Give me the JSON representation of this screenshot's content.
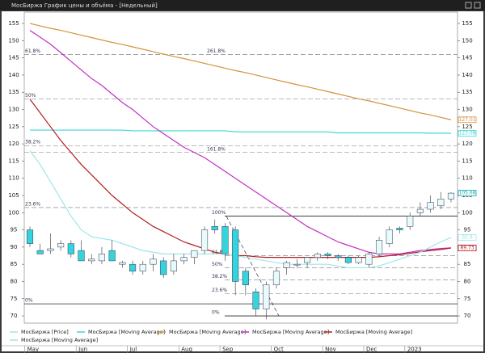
{
  "window_title": "МосБиржа График цены и объёма - [Недельный]",
  "chart_data": {
    "type": "candlestick",
    "categories": [
      "May",
      null,
      null,
      null,
      null,
      "Jun",
      null,
      null,
      null,
      null,
      "Jul",
      null,
      null,
      null,
      null,
      "Aug",
      null,
      null,
      null,
      "Sep",
      null,
      null,
      null,
      null,
      "Oct",
      null,
      null,
      null,
      null,
      "Nov",
      null,
      null,
      null,
      "Dec",
      null,
      null,
      null,
      "2023",
      null,
      null,
      null,
      null
    ],
    "price": {
      "name": "МосБиржа [Price]",
      "color": "#9fe6e6",
      "up_color": "#e8fbfb",
      "down_color": "#33d4dc",
      "last": 105.68,
      "open": [
        95,
        89,
        89,
        90,
        91,
        89,
        86,
        86,
        89,
        85,
        85,
        83,
        85,
        86,
        83,
        86,
        87,
        89,
        96,
        96,
        95,
        83,
        77,
        72,
        79,
        84,
        85,
        85.5,
        87,
        88,
        87.5,
        87,
        85.5,
        85,
        88,
        91,
        95.5,
        96,
        100,
        101,
        102,
        104
      ],
      "high": [
        96,
        91,
        94,
        92,
        92,
        92,
        88,
        90,
        92,
        86,
        86,
        86,
        88,
        87,
        88,
        88,
        89,
        96,
        98,
        97,
        96,
        84,
        78,
        80,
        84,
        86,
        86.5,
        87,
        88.5,
        88.5,
        88,
        87.5,
        87.5,
        88.5,
        93,
        96,
        96,
        100,
        103,
        105,
        106,
        106
      ],
      "low": [
        90,
        88,
        88,
        89,
        87,
        86,
        85,
        85,
        86,
        84,
        82,
        82,
        83,
        81,
        82,
        85,
        85,
        88,
        94,
        86,
        76,
        76,
        70,
        69,
        78,
        82,
        84,
        84,
        86,
        86.5,
        86,
        85,
        85,
        84,
        87,
        90,
        94,
        95,
        99,
        100,
        101,
        103
      ],
      "close": [
        91,
        88,
        89.5,
        91,
        88,
        86,
        86.5,
        88,
        86,
        85.5,
        83,
        85,
        86.5,
        82,
        86,
        87,
        89,
        95,
        95,
        88,
        80,
        79,
        72,
        79,
        83,
        85.5,
        85,
        87,
        88,
        87.5,
        87,
        85.5,
        87,
        88,
        92,
        95,
        95,
        99,
        101,
        103,
        104,
        105.68
      ]
    },
    "series": [
      {
        "name": "МосБиржа [Moving Average]",
        "color": "#3fd6d6",
        "last": 123.08,
        "values": [
          124,
          124,
          124,
          124,
          124,
          124,
          124,
          124,
          124,
          124,
          123.8,
          123.8,
          123.8,
          123.8,
          123.8,
          123.8,
          123.8,
          123.8,
          123.8,
          123.8,
          123.5,
          123.5,
          123.5,
          123.5,
          123.5,
          123.5,
          123.5,
          123.5,
          123.5,
          123.5,
          123.2,
          123.2,
          123.2,
          123.2,
          123.2,
          123.2,
          123.2,
          123.2,
          123.2,
          123.1,
          123.1,
          123.08
        ]
      },
      {
        "name": "МосБиржа [Moving Average]",
        "color": "#d4923a",
        "last": 127.01,
        "values": [
          155,
          154.3,
          153.6,
          153,
          152.3,
          151.6,
          150.9,
          150.2,
          149.5,
          148.9,
          148.2,
          147.5,
          146.8,
          146.1,
          145.4,
          144.8,
          144.1,
          143.4,
          142.7,
          142,
          141.3,
          140.7,
          140,
          139.3,
          138.6,
          137.9,
          137.2,
          136.6,
          135.9,
          135.2,
          134.5,
          133.8,
          133.1,
          132.5,
          131.8,
          131.1,
          130.4,
          129.7,
          129,
          128.4,
          127.7,
          127.01
        ]
      },
      {
        "name": "МосБиржа [Moving Average]",
        "color": "#c22ec2",
        "last": 89.78,
        "values": [
          153,
          151,
          149,
          146.5,
          144,
          141.5,
          139,
          137,
          134.5,
          132,
          130,
          127.5,
          125,
          123,
          121,
          119,
          117.5,
          116,
          114,
          112,
          110,
          108,
          106,
          104,
          102,
          100,
          98,
          96,
          94.5,
          93,
          91.5,
          90.5,
          89.5,
          88.5,
          88,
          88,
          88,
          88.5,
          89,
          89.3,
          89.6,
          89.78
        ]
      },
      {
        "name": "МосБиржа [Moving Average]",
        "color": "#b01e1e",
        "last": 89.73,
        "values": [
          133,
          129,
          125,
          121,
          117.5,
          114,
          111,
          108,
          105,
          102.5,
          100,
          98,
          96,
          94.5,
          93,
          91.5,
          90.5,
          89.5,
          88.5,
          88,
          87.5,
          87.5,
          87.2,
          87,
          87,
          87,
          87,
          87,
          87,
          87,
          87,
          87,
          87,
          87,
          87.2,
          87.5,
          87.8,
          88.2,
          88.6,
          89,
          89.3,
          89.73
        ]
      },
      {
        "name": "МосБиржа [Moving Average]",
        "color": "#9fe6e6",
        "last": 92.8,
        "values": [
          118,
          114,
          109,
          104,
          99,
          95,
          93,
          92.5,
          92,
          91,
          90,
          89,
          88.5,
          88,
          88,
          88,
          88,
          88,
          88,
          88,
          87.5,
          87,
          86.5,
          86,
          85.5,
          85,
          85,
          85,
          85,
          85,
          84.5,
          84,
          84,
          84,
          84.5,
          85.5,
          86.5,
          87.5,
          88.5,
          90,
          91.5,
          92.8
        ]
      }
    ],
    "fib_left": [
      {
        "value": 146,
        "label": "61.8%"
      },
      {
        "value": 133,
        "label": "50%"
      },
      {
        "value": 119.5,
        "label": "38.2%"
      },
      {
        "value": 101.5,
        "label": "23.6%"
      },
      {
        "value": 73.5,
        "label": "0%"
      }
    ],
    "fib_ext": [
      {
        "value": 146,
        "label": "261.8%"
      },
      {
        "value": 117.5,
        "label": "161.8%"
      }
    ],
    "fib_right": [
      {
        "value": 99,
        "label": "100%"
      },
      {
        "value": 87.5,
        "label": "61.8%"
      },
      {
        "value": 84,
        "label": "50%"
      },
      {
        "value": 80.5,
        "label": "38.2%"
      },
      {
        "value": 76.5,
        "label": "23.6%"
      },
      {
        "value": 70,
        "label": "0%"
      }
    ],
    "ylim": [
      67.9,
      158.3
    ],
    "yticks": [
      70,
      75,
      80,
      85,
      90,
      95,
      100,
      105,
      110,
      115,
      120,
      125,
      130,
      135,
      140,
      145,
      150,
      155
    ]
  }
}
